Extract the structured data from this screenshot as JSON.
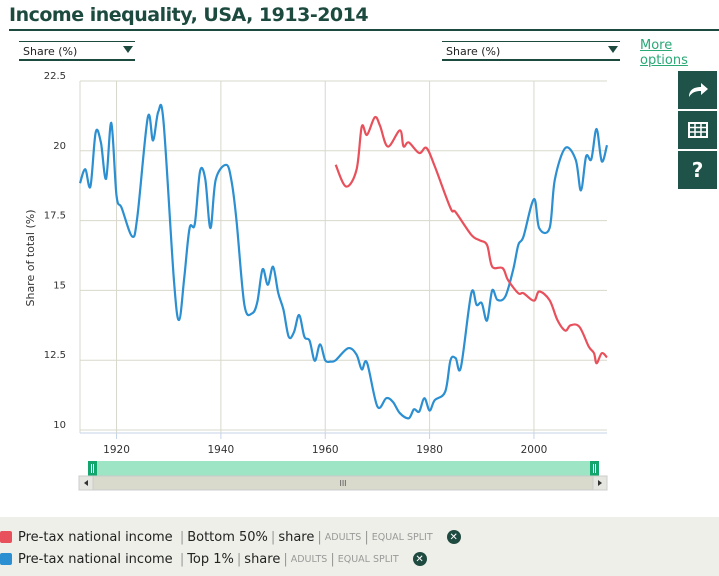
{
  "header": {
    "title": "Income inequality, USA, 1913-2014",
    "more_options": "More options"
  },
  "selectors": {
    "left": "Share (%)",
    "right": "Share (%)"
  },
  "side_buttons": [
    {
      "icon": "share-arrow-icon"
    },
    {
      "icon": "table-icon"
    },
    {
      "icon": "help-icon",
      "label": "?"
    }
  ],
  "legend": [
    {
      "color": "#e8505b",
      "variable": "Pre-tax national income",
      "group": "Bottom 50%",
      "measure": "share",
      "population": "ADULTS",
      "unit": "EQUAL SPLIT"
    },
    {
      "color": "#2b8fd1",
      "variable": "Pre-tax national income",
      "group": "Top 1%",
      "measure": "share",
      "population": "ADULTS",
      "unit": "EQUAL SPLIT"
    }
  ],
  "navigator": {
    "scroll_grip": "III"
  },
  "chart_data": {
    "type": "line",
    "title": "Income inequality, USA, 1913-2014",
    "ylabel": "Share of total (%)",
    "xlabel": "",
    "xlim": [
      1913,
      2014
    ],
    "ylim": [
      10,
      22.5
    ],
    "x_ticks": [
      "1920",
      "1940",
      "1960",
      "1980",
      "2000"
    ],
    "y_ticks": [
      "10",
      "12.5",
      "15",
      "17.5",
      "20",
      "22.5"
    ],
    "grid": true,
    "series": [
      {
        "name": "Pre-tax national income | Top 1% | share",
        "color": "#2b8fd1",
        "x": [
          1913,
          1914,
          1915,
          1916,
          1917,
          1918,
          1919,
          1920,
          1921,
          1923,
          1924,
          1926,
          1927,
          1928,
          1929,
          1931,
          1932,
          1933,
          1934,
          1935,
          1936,
          1937,
          1938,
          1939,
          1941,
          1942,
          1943,
          1944.5,
          1946,
          1947,
          1948,
          1949,
          1950,
          1951,
          1952,
          1953,
          1954,
          1955,
          1956,
          1957,
          1958,
          1959,
          1960,
          1961,
          1962,
          1964.4,
          1966,
          1967,
          1968,
          1970,
          1971.7,
          1973,
          1974.3,
          1976,
          1977,
          1978,
          1979,
          1980,
          1981,
          1983,
          1984,
          1985,
          1986,
          1988,
          1989,
          1990,
          1991,
          1992,
          1993,
          1994.5,
          1996,
          1997,
          1998,
          2000,
          2001,
          2003,
          2004,
          2006,
          2008,
          2009,
          2010,
          2011,
          2012,
          2013,
          2014
        ],
        "y": [
          18.84,
          19.34,
          18.72,
          20.66,
          20.3,
          19.0,
          21.0,
          18.4,
          17.95,
          16.93,
          17.65,
          21.2,
          20.37,
          21.4,
          21.05,
          15.38,
          13.94,
          15.5,
          17.23,
          17.38,
          19.26,
          19.0,
          17.23,
          18.96,
          19.5,
          18.96,
          17.5,
          14.48,
          14.18,
          14.6,
          15.76,
          15.2,
          15.85,
          14.9,
          14.3,
          13.34,
          13.5,
          14.12,
          13.34,
          13.2,
          12.48,
          13.07,
          12.5,
          12.45,
          12.5,
          12.93,
          12.7,
          12.17,
          12.41,
          10.84,
          11.14,
          11.0,
          10.6,
          10.42,
          10.74,
          10.66,
          11.14,
          10.7,
          11.07,
          11.37,
          12.5,
          12.57,
          12.25,
          14.9,
          14.48,
          14.54,
          13.92,
          15.0,
          14.66,
          14.78,
          15.73,
          16.63,
          16.93,
          18.27,
          17.23,
          17.23,
          18.96,
          20.1,
          19.68,
          18.58,
          19.8,
          19.7,
          20.78,
          19.62,
          20.2
        ]
      },
      {
        "name": "Pre-tax national income | Bottom 50% | share",
        "color": "#e8505b",
        "x": [
          1962,
          1964,
          1966,
          1967,
          1968,
          1969.5,
          1970.5,
          1972,
          1974.3,
          1975,
          1976,
          1978,
          1979.4,
          1981,
          1984,
          1985,
          1988,
          1989.5,
          1991,
          1992,
          1994,
          1995,
          1997,
          1998,
          2000,
          2001,
          2003,
          2004.5,
          2006,
          2007,
          2008.7,
          2010.5,
          2011.5,
          2012,
          2013,
          2014
        ],
        "y": [
          19.5,
          18.72,
          19.32,
          20.87,
          20.57,
          21.2,
          20.9,
          20.15,
          20.73,
          20.16,
          20.3,
          19.92,
          20.1,
          19.44,
          17.95,
          17.8,
          16.99,
          16.8,
          16.63,
          15.85,
          15.8,
          15.38,
          14.9,
          14.9,
          14.63,
          14.96,
          14.65,
          13.94,
          13.56,
          13.75,
          13.7,
          12.99,
          12.75,
          12.39,
          12.75,
          12.6
        ]
      }
    ]
  }
}
